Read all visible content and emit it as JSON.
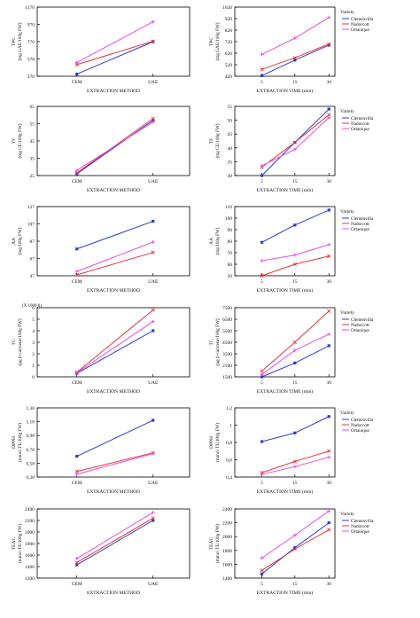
{
  "colors": {
    "Clemenvilla": "#2b3bd6",
    "Nadorcott": "#e8353a",
    "Ortanique": "#e64ce6",
    "axis": "#000000"
  },
  "legend": {
    "title": "Variety",
    "items": [
      "Clemenvilla",
      "Nadorcott",
      "Ortanique"
    ]
  },
  "chart_data": [
    {
      "id": "tpc-method",
      "type": "line",
      "ylabel": [
        "TPC",
        "(mg GAE/100g FW)"
      ],
      "xlabel": "EXTRACTION METHOD",
      "categories": [
        "CEM",
        "UAE"
      ],
      "yticks": [
        "370",
        "570",
        "770",
        "970",
        "1170"
      ],
      "ylim": [
        370,
        1170
      ],
      "legend": false,
      "series": [
        {
          "name": "Clemenvilla",
          "values": [
            395,
            770
          ]
        },
        {
          "name": "Nadorcott",
          "values": [
            505,
            775
          ]
        },
        {
          "name": "Ortanique",
          "values": [
            530,
            1000
          ]
        }
      ]
    },
    {
      "id": "tpc-time",
      "type": "line",
      "ylabel": [
        "TPC",
        "(mg GAE/100g FW)"
      ],
      "xlabel": "EXTRACTION TIME (min)",
      "categories": [
        "5",
        "15",
        "30"
      ],
      "yticks": [
        "420",
        "520",
        "620",
        "720",
        "820",
        "920",
        "1020"
      ],
      "ylim": [
        420,
        1020
      ],
      "legend": true,
      "series": [
        {
          "name": "Clemenvilla",
          "values": [
            425,
            560,
            690
          ]
        },
        {
          "name": "Nadorcott",
          "values": [
            480,
            580,
            700
          ]
        },
        {
          "name": "Ortanique",
          "values": [
            610,
            750,
            930
          ]
        }
      ]
    },
    {
      "id": "tf-method",
      "type": "line",
      "ylabel": [
        "TF",
        "(mg CE/100g FW)"
      ],
      "xlabel": "EXTRACTION METHOD",
      "categories": [
        "CEM",
        "UAE"
      ],
      "yticks": [
        "25",
        "35",
        "45",
        "55",
        "65"
      ],
      "ylim": [
        25,
        65
      ],
      "legend": false,
      "series": [
        {
          "name": "Clemenvilla",
          "values": [
            26,
            57
          ]
        },
        {
          "name": "Nadorcott",
          "values": [
            26.5,
            58
          ]
        },
        {
          "name": "Ortanique",
          "values": [
            28,
            56
          ]
        }
      ]
    },
    {
      "id": "tf-time",
      "type": "line",
      "ylabel": [
        "TF",
        "(mg CE/100g FW)"
      ],
      "xlabel": "EXTRACTION TIME (min)",
      "categories": [
        "5",
        "15",
        "30"
      ],
      "yticks": [
        "30",
        "35",
        "40",
        "45",
        "50",
        "55"
      ],
      "ylim": [
        30,
        55
      ],
      "legend": true,
      "series": [
        {
          "name": "Clemenvilla",
          "values": [
            30,
            42,
            54
          ]
        },
        {
          "name": "Nadorcott",
          "values": [
            33,
            42,
            52
          ]
        },
        {
          "name": "Ortanique",
          "values": [
            33.5,
            39.5,
            51
          ]
        }
      ]
    },
    {
      "id": "aa-method",
      "type": "line",
      "ylabel": [
        "AA",
        "(mg/100g FW)"
      ],
      "xlabel": "EXTRACTION METHOD",
      "categories": [
        "CEM",
        "UAE"
      ],
      "yticks": [
        "47",
        "67",
        "87",
        "107",
        "127"
      ],
      "ylim": [
        47,
        127
      ],
      "legend": false,
      "series": [
        {
          "name": "Clemenvilla",
          "values": [
            78,
            110
          ]
        },
        {
          "name": "Nadorcott",
          "values": [
            48,
            74
          ]
        },
        {
          "name": "Ortanique",
          "values": [
            52,
            86
          ]
        }
      ]
    },
    {
      "id": "aa-time",
      "type": "line",
      "ylabel": [
        "AA",
        "(mg/100g FW)"
      ],
      "xlabel": "EXTRACTION TIME (min)",
      "categories": [
        "5",
        "15",
        "30"
      ],
      "yticks": [
        "50",
        "60",
        "70",
        "80",
        "90",
        "100",
        "110"
      ],
      "ylim": [
        50,
        110
      ],
      "legend": true,
      "series": [
        {
          "name": "Clemenvilla",
          "values": [
            79,
            94,
            107
          ]
        },
        {
          "name": "Nadorcott",
          "values": [
            50,
            60,
            67
          ]
        },
        {
          "name": "Ortanique",
          "values": [
            63,
            68,
            77
          ]
        }
      ]
    },
    {
      "id": "tc-method",
      "type": "line",
      "ylabel": [
        "TC",
        "(µg β-carotene/100g FW)"
      ],
      "xlabel": "EXTRACTION METHOD",
      "scale_note": "(X 1000,0)",
      "categories": [
        "CEM",
        "UAE"
      ],
      "yticks": [
        "0",
        "1",
        "2",
        "3",
        "4",
        "5",
        "6"
      ],
      "ylim": [
        0,
        6
      ],
      "legend": false,
      "series": [
        {
          "name": "Clemenvilla",
          "values": [
            0.3,
            4.0
          ]
        },
        {
          "name": "Nadorcott",
          "values": [
            0.4,
            5.8
          ]
        },
        {
          "name": "Ortanique",
          "values": [
            0.35,
            4.8
          ]
        }
      ]
    },
    {
      "id": "tc-time",
      "type": "line",
      "ylabel": [
        "TC",
        "(µg β-carotene/100g FW)"
      ],
      "xlabel": "EXTRACTION TIME (min)",
      "categories": [
        "5",
        "15",
        "30"
      ],
      "yticks": [
        "1500",
        "2500",
        "3500",
        "4500",
        "5500",
        "6500",
        "7500"
      ],
      "ylim": [
        1500,
        7500
      ],
      "legend": true,
      "series": [
        {
          "name": "Clemenvilla",
          "values": [
            1500,
            2700,
            4200
          ]
        },
        {
          "name": "Nadorcott",
          "values": [
            2000,
            4500,
            7200
          ]
        },
        {
          "name": "Ortanique",
          "values": [
            1700,
            3800,
            5200
          ]
        }
      ]
    },
    {
      "id": "dpph-method",
      "type": "line",
      "ylabel": [
        "DPPH",
        "(mmol TE/100g FW)"
      ],
      "xlabel": "EXTRACTION METHOD",
      "categories": [
        "CEM",
        "UAE"
      ],
      "yticks": [
        "0,38",
        "0,58",
        "0,78",
        "0,98",
        "1,18",
        "1,38"
      ],
      "ylim": [
        0.38,
        1.38
      ],
      "legend": false,
      "series": [
        {
          "name": "Clemenvilla",
          "values": [
            0.68,
            1.2
          ]
        },
        {
          "name": "Nadorcott",
          "values": [
            0.46,
            0.73
          ]
        },
        {
          "name": "Ortanique",
          "values": [
            0.42,
            0.72
          ]
        }
      ]
    },
    {
      "id": "dpph-time",
      "type": "line",
      "ylabel": [
        "DPPH",
        "(mmol TE/100g FW)"
      ],
      "xlabel": "EXTRACTION TIME (min)",
      "categories": [
        "5",
        "15",
        "30"
      ],
      "yticks": [
        "0,4",
        "0,6",
        "0,8",
        "1",
        "1,2"
      ],
      "ylim": [
        0.4,
        1.2
      ],
      "legend": true,
      "series": [
        {
          "name": "Clemenvilla",
          "values": [
            0.81,
            0.91,
            1.1
          ]
        },
        {
          "name": "Nadorcott",
          "values": [
            0.45,
            0.58,
            0.7
          ]
        },
        {
          "name": "Ortanique",
          "values": [
            0.43,
            0.52,
            0.63
          ]
        }
      ]
    },
    {
      "id": "teac-method",
      "type": "line",
      "ylabel": [
        "TEAC",
        "(mmol TE/100g FW)"
      ],
      "xlabel": "EXTRACTION METHOD",
      "categories": [
        "CEM",
        "UAE"
      ],
      "yticks": [
        "1200",
        "1400",
        "1600",
        "1800",
        "2000",
        "2200",
        "2400"
      ],
      "ylim": [
        1200,
        2400
      ],
      "legend": false,
      "series": [
        {
          "name": "Clemenvilla",
          "values": [
            1430,
            2200
          ]
        },
        {
          "name": "Nadorcott",
          "values": [
            1470,
            2240
          ]
        },
        {
          "name": "Ortanique",
          "values": [
            1540,
            2340
          ]
        }
      ]
    },
    {
      "id": "teac-time",
      "type": "line",
      "ylabel": [
        "TEAC",
        "(mmol TE/100g FW)"
      ],
      "xlabel": "EXTRACTION TIME (min)",
      "categories": [
        "5",
        "15",
        "30"
      ],
      "yticks": [
        "1400",
        "1600",
        "1800",
        "2000",
        "2200",
        "2400"
      ],
      "ylim": [
        1400,
        2400
      ],
      "legend": true,
      "series": [
        {
          "name": "Clemenvilla",
          "values": [
            1460,
            1840,
            2200
          ]
        },
        {
          "name": "Nadorcott",
          "values": [
            1510,
            1820,
            2100
          ]
        },
        {
          "name": "Ortanique",
          "values": [
            1690,
            2020,
            2370
          ]
        }
      ]
    }
  ]
}
